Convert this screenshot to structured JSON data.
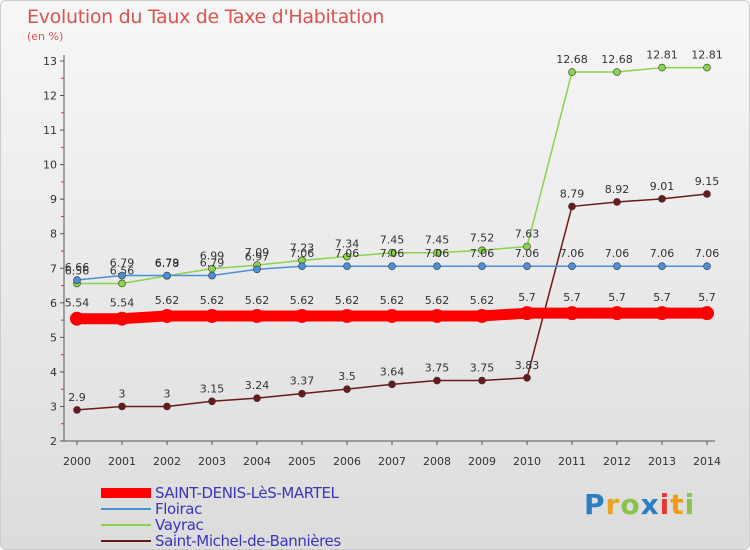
{
  "title": "Evolution du Taux de Taxe d'Habitation",
  "units": "(en %)",
  "logo": "Proxiti",
  "chart_data": {
    "type": "line",
    "title": "Evolution du Taux de Taxe d'Habitation",
    "ylabel": "(en %)",
    "xlabel": "",
    "x": [
      2000,
      2001,
      2002,
      2003,
      2004,
      2005,
      2006,
      2007,
      2008,
      2009,
      2010,
      2011,
      2012,
      2013,
      2014
    ],
    "ylim": [
      2,
      13
    ],
    "yticks": [
      2,
      3,
      4,
      5,
      6,
      7,
      8,
      9,
      10,
      11,
      12,
      13
    ],
    "grid": false,
    "legend_position": "bottom-left",
    "series": [
      {
        "name": "SAINT-DENIS-LèS-MARTEL",
        "color": "#ff0000",
        "labels": [
          "5.54",
          "5.54",
          "5.62",
          "5.62",
          "5.62",
          "5.62",
          "5.62",
          "5.62",
          "5.62",
          "5.62",
          "5.7",
          "5.7",
          "5.7",
          "5.7",
          "5.7"
        ],
        "values": [
          5.54,
          5.54,
          5.62,
          5.62,
          5.62,
          5.62,
          5.62,
          5.62,
          5.62,
          5.62,
          5.7,
          5.7,
          5.7,
          5.7,
          5.7
        ]
      },
      {
        "name": "Floirac",
        "color": "#4a90d9",
        "labels": [
          "6.66",
          "6.79",
          "6.79",
          "6.79",
          "6.97",
          "7.06",
          "7.06",
          "7.06",
          "7.06",
          "7.06",
          "7.06",
          "7.06",
          "7.06",
          "7.06",
          "7.06"
        ],
        "values": [
          6.66,
          6.79,
          6.79,
          6.79,
          6.97,
          7.06,
          7.06,
          7.06,
          7.06,
          7.06,
          7.06,
          7.06,
          7.06,
          7.06,
          7.06
        ]
      },
      {
        "name": "Vayrac",
        "color": "#88d44c",
        "labels": [
          "6.56",
          "6.56",
          "6.78",
          "6.99",
          "7.09",
          "7.23",
          "7.34",
          "7.45",
          "7.45",
          "7.52",
          "7.63",
          "12.68",
          "12.68",
          "12.81",
          "12.81"
        ],
        "values": [
          6.56,
          6.56,
          6.78,
          6.99,
          7.09,
          7.23,
          7.34,
          7.45,
          7.45,
          7.52,
          7.63,
          12.68,
          12.68,
          12.81,
          12.81
        ]
      },
      {
        "name": "Saint-Michel-de-Bannières",
        "color": "#6b1a1a",
        "labels": [
          "2.9",
          "3",
          "3",
          "3.15",
          "3.24",
          "3.37",
          "3.5",
          "3.64",
          "3.75",
          "3.75",
          "3.83",
          "8.79",
          "8.92",
          "9.01",
          "9.15"
        ],
        "values": [
          2.9,
          3,
          3,
          3.15,
          3.24,
          3.37,
          3.5,
          3.64,
          3.75,
          3.75,
          3.83,
          8.79,
          8.92,
          9.01,
          9.15
        ]
      }
    ]
  }
}
